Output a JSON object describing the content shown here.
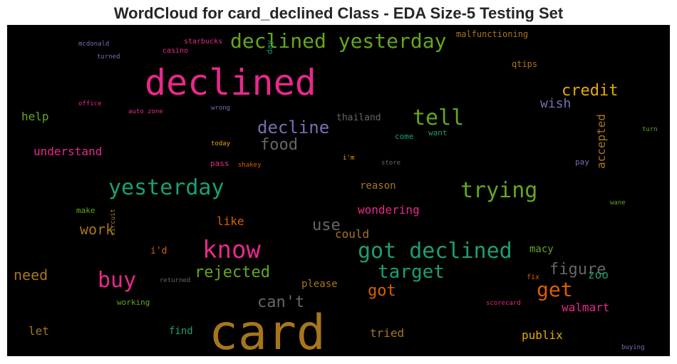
{
  "title": "WordCloud for card_declined Class - EDA Size-5 Testing Set",
  "chart_data": {
    "type": "wordcloud",
    "title": "WordCloud for card_declined Class - EDA Size-5 Testing Set",
    "colormap": "Dark2",
    "background": "#000000",
    "words": [
      {
        "text": "card",
        "rank": 1,
        "color": "#a6761d"
      },
      {
        "text": "declined",
        "rank": 2,
        "color": "#e7298a"
      },
      {
        "text": "declined yesterday",
        "rank": 3,
        "color": "#66a61e"
      },
      {
        "text": "know",
        "rank": 4,
        "color": "#e7298a"
      },
      {
        "text": "got declined",
        "rank": 5,
        "color": "#1b9e77"
      },
      {
        "text": "yesterday",
        "rank": 6,
        "color": "#1b9e77"
      },
      {
        "text": "trying",
        "rank": 7,
        "color": "#66a61e"
      },
      {
        "text": "tell",
        "rank": 8,
        "color": "#66a61e"
      },
      {
        "text": "buy",
        "rank": 9,
        "color": "#e7298a"
      },
      {
        "text": "get",
        "rank": 10,
        "color": "#d95f02"
      },
      {
        "text": "target",
        "rank": 11,
        "color": "#1b9e77"
      },
      {
        "text": "decline",
        "rank": 12,
        "color": "#7570b3"
      },
      {
        "text": "credit",
        "rank": 13,
        "color": "#e6ab02"
      },
      {
        "text": "figure",
        "rank": 14,
        "color": "#666666"
      },
      {
        "text": "food",
        "rank": 15,
        "color": "#666666"
      },
      {
        "text": "rejected",
        "rank": 16,
        "color": "#66a61e"
      },
      {
        "text": "can't",
        "rank": 17,
        "color": "#666666"
      },
      {
        "text": "got",
        "rank": 18,
        "color": "#d95f02"
      },
      {
        "text": "use",
        "rank": 19,
        "color": "#666666"
      },
      {
        "text": "work",
        "rank": 20,
        "color": "#a6761d"
      },
      {
        "text": "need",
        "rank": 21,
        "color": "#a6761d"
      },
      {
        "text": "wish",
        "rank": 22,
        "color": "#7570b3"
      },
      {
        "text": "understand",
        "rank": 23,
        "color": "#e7298a"
      },
      {
        "text": "wondering",
        "rank": 24,
        "color": "#e7298a"
      },
      {
        "text": "like",
        "rank": 25,
        "color": "#d95f02"
      },
      {
        "text": "could",
        "rank": 26,
        "color": "#a6761d"
      },
      {
        "text": "walmart",
        "rank": 27,
        "color": "#e7298a"
      },
      {
        "text": "publix",
        "rank": 28,
        "color": "#e6ab02"
      },
      {
        "text": "help",
        "rank": 29,
        "color": "#66a61e"
      },
      {
        "text": "accepted",
        "rank": 30,
        "color": "#a6761d"
      },
      {
        "text": "let",
        "rank": 31,
        "color": "#a6761d"
      },
      {
        "text": "tried",
        "rank": 32,
        "color": "#a6761d"
      },
      {
        "text": "zoo",
        "rank": 33,
        "color": "#1b9e77"
      },
      {
        "text": "find",
        "rank": 34,
        "color": "#1b9e77"
      },
      {
        "text": "please",
        "rank": 35,
        "color": "#a6761d"
      },
      {
        "text": "macy",
        "rank": 36,
        "color": "#66a61e"
      },
      {
        "text": "reason",
        "rank": 37,
        "color": "#a6761d"
      },
      {
        "text": "i'd",
        "rank": 38,
        "color": "#d95f02"
      },
      {
        "text": "thailand",
        "rank": 39,
        "color": "#666666"
      },
      {
        "text": "qtips",
        "rank": 40,
        "color": "#a6761d"
      },
      {
        "text": "malfunctioning",
        "rank": 41,
        "color": "#a6761d"
      },
      {
        "text": "working",
        "rank": 42,
        "color": "#66a61e"
      },
      {
        "text": "come",
        "rank": 43,
        "color": "#1b9e77"
      },
      {
        "text": "want",
        "rank": 44,
        "color": "#1b9e77"
      },
      {
        "text": "pay",
        "rank": 45,
        "color": "#7570b3"
      },
      {
        "text": "pass",
        "rank": 46,
        "color": "#e7298a"
      },
      {
        "text": "make",
        "rank": 47,
        "color": "#66a61e"
      },
      {
        "text": "day",
        "rank": 48,
        "color": "#1b9e77"
      },
      {
        "text": "starbucks",
        "rank": 49,
        "color": "#e7298a"
      },
      {
        "text": "casino",
        "rank": 50,
        "color": "#e7298a"
      },
      {
        "text": "mcdonald",
        "rank": 51,
        "color": "#7570b3"
      },
      {
        "text": "turned",
        "rank": 52,
        "color": "#7570b3"
      },
      {
        "text": "office",
        "rank": 53,
        "color": "#e7298a"
      },
      {
        "text": "auto zone",
        "rank": 54,
        "color": "#e7298a"
      },
      {
        "text": "wrong",
        "rank": 55,
        "color": "#7570b3"
      },
      {
        "text": "today",
        "rank": 56,
        "color": "#e6ab02"
      },
      {
        "text": "i'm",
        "rank": 57,
        "color": "#e6ab02"
      },
      {
        "text": "store",
        "rank": 58,
        "color": "#666666"
      },
      {
        "text": "shakey",
        "rank": 59,
        "color": "#d95f02"
      },
      {
        "text": "turn",
        "rank": 60,
        "color": "#66a61e"
      },
      {
        "text": "wane",
        "rank": 61,
        "color": "#66a61e"
      },
      {
        "text": "circuit",
        "rank": 62,
        "color": "#a6761d"
      },
      {
        "text": "returned",
        "rank": 63,
        "color": "#666666"
      },
      {
        "text": "fix",
        "rank": 64,
        "color": "#d95f02"
      },
      {
        "text": "scorecard",
        "rank": 65,
        "color": "#e7298a"
      },
      {
        "text": "buying",
        "rank": 66,
        "color": "#7570b3"
      }
    ]
  }
}
